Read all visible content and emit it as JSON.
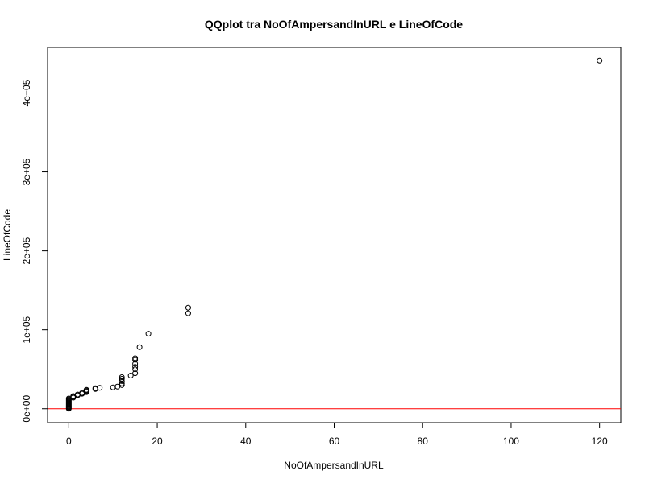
{
  "chart_data": {
    "type": "scatter",
    "title": "QQplot tra NoOfAmpersandInURL e LineOfCode",
    "xlabel": "NoOfAmpersandInURL",
    "ylabel": "LineOfCode",
    "xlim": [
      -4.8,
      124.8
    ],
    "ylim": [
      -17600,
      457600
    ],
    "x_ticks": [
      0,
      20,
      40,
      60,
      80,
      100,
      120
    ],
    "x_tick_labels": [
      "0",
      "20",
      "40",
      "60",
      "80",
      "100",
      "120"
    ],
    "y_ticks": [
      0,
      100000,
      200000,
      300000,
      400000
    ],
    "y_tick_labels": [
      "0e+00",
      "1e+05",
      "2e+05",
      "3e+05",
      "4e+05"
    ],
    "reference_line": {
      "type": "horizontal",
      "y": 0,
      "color": "#ff0000"
    },
    "grid": false,
    "legend": false,
    "points": [
      [
        0,
        0
      ],
      [
        0,
        1000
      ],
      [
        0,
        2000
      ],
      [
        0,
        3000
      ],
      [
        0,
        4000
      ],
      [
        0,
        5000
      ],
      [
        0,
        6000
      ],
      [
        0,
        7000
      ],
      [
        0,
        8000
      ],
      [
        0,
        9000
      ],
      [
        0,
        10000
      ],
      [
        0,
        11000
      ],
      [
        0,
        12000
      ],
      [
        0,
        13000
      ],
      [
        1,
        14000
      ],
      [
        1,
        15000
      ],
      [
        1,
        16000
      ],
      [
        2,
        17000
      ],
      [
        2,
        18000
      ],
      [
        3,
        19000
      ],
      [
        3,
        20000
      ],
      [
        4,
        21000
      ],
      [
        4,
        22000
      ],
      [
        4,
        23000
      ],
      [
        4,
        24000
      ],
      [
        6,
        25000
      ],
      [
        6,
        26000
      ],
      [
        7,
        26500
      ],
      [
        10,
        27000
      ],
      [
        11,
        28000
      ],
      [
        12,
        30000
      ],
      [
        12,
        32000
      ],
      [
        12,
        35000
      ],
      [
        12,
        38000
      ],
      [
        12,
        40000
      ],
      [
        14,
        42000
      ],
      [
        15,
        45000
      ],
      [
        15,
        50000
      ],
      [
        15,
        53000
      ],
      [
        15,
        57000
      ],
      [
        15,
        62000
      ],
      [
        15,
        64000
      ],
      [
        16,
        78000
      ],
      [
        18,
        95000
      ],
      [
        27,
        121000
      ],
      [
        27,
        128000
      ],
      [
        120,
        441000
      ]
    ]
  }
}
